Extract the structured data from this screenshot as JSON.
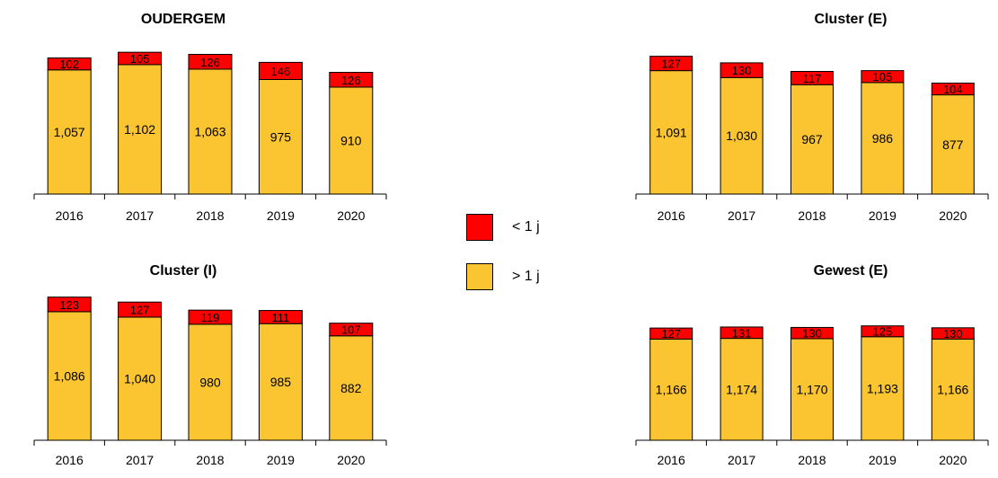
{
  "chart_data": [
    {
      "type": "bar",
      "stacked": true,
      "title": "OUDERGEM",
      "categories": [
        "2016",
        "2017",
        "2018",
        "2019",
        "2020"
      ],
      "series": [
        {
          "name": "> 1 j",
          "values": [
            1057,
            1102,
            1063,
            975,
            910
          ],
          "labels": [
            "1,057",
            "1,102",
            "1,063",
            "975",
            "910"
          ]
        },
        {
          "name": "< 1 j",
          "values": [
            102,
            105,
            126,
            146,
            126
          ],
          "labels": [
            "102",
            "105",
            "126",
            "146",
            "126"
          ]
        }
      ],
      "ylim": [
        0,
        1300
      ],
      "grid": false
    },
    {
      "type": "bar",
      "stacked": true,
      "title": "Cluster (E)",
      "categories": [
        "2016",
        "2017",
        "2018",
        "2019",
        "2020"
      ],
      "series": [
        {
          "name": "> 1 j",
          "values": [
            1091,
            1030,
            967,
            986,
            877
          ],
          "labels": [
            "1,091",
            "1,030",
            "967",
            "986",
            "877"
          ]
        },
        {
          "name": "< 1 j",
          "values": [
            127,
            130,
            117,
            105,
            104
          ],
          "labels": [
            "127",
            "130",
            "117",
            "105",
            "104"
          ]
        }
      ],
      "ylim": [
        0,
        1350
      ],
      "grid": false
    },
    {
      "type": "bar",
      "stacked": true,
      "title": "Cluster (I)",
      "categories": [
        "2016",
        "2017",
        "2018",
        "2019",
        "2020"
      ],
      "series": [
        {
          "name": "> 1 j",
          "values": [
            1086,
            1040,
            980,
            985,
            882
          ],
          "labels": [
            "1,086",
            "1,040",
            "980",
            "985",
            "882"
          ]
        },
        {
          "name": "< 1 j",
          "values": [
            123,
            127,
            119,
            111,
            107
          ],
          "labels": [
            "123",
            "127",
            "119",
            "111",
            "107"
          ]
        }
      ],
      "ylim": [
        0,
        1290
      ],
      "grid": false
    },
    {
      "type": "bar",
      "stacked": true,
      "title": "Gewest (E)",
      "categories": [
        "2016",
        "2017",
        "2018",
        "2019",
        "2020"
      ],
      "series": [
        {
          "name": "> 1 j",
          "values": [
            1166,
            1174,
            1170,
            1193,
            1166
          ],
          "labels": [
            "1,166",
            "1,174",
            "1,170",
            "1,193",
            "1,166"
          ]
        },
        {
          "name": "< 1 j",
          "values": [
            127,
            131,
            130,
            125,
            130
          ],
          "labels": [
            "127",
            "131",
            "130",
            "125",
            "130"
          ]
        }
      ],
      "ylim": [
        0,
        1760
      ],
      "grid": false
    }
  ],
  "legend": {
    "items": [
      {
        "label": "< 1 j",
        "color": "#ff0000"
      },
      {
        "label": "> 1 j",
        "color": "#fbc531"
      }
    ]
  },
  "colors": {
    "lower": "#fbc531",
    "upper": "#ff0000",
    "stroke": "#000000"
  }
}
